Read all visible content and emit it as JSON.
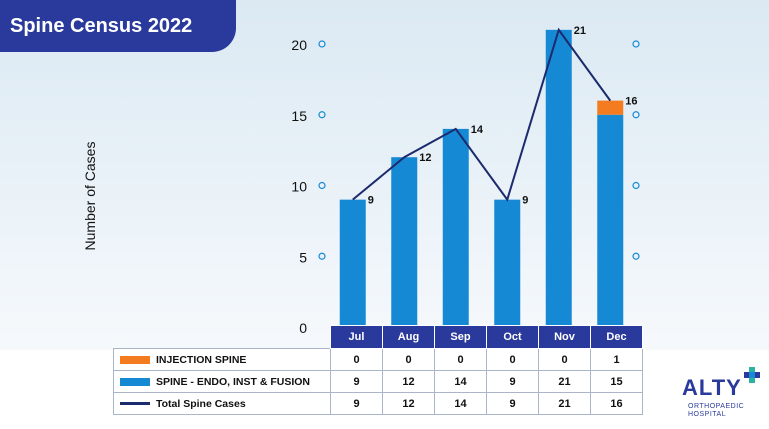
{
  "title": "Spine Census 2022",
  "colors": {
    "injection": "#f47b20",
    "spine": "#1589d4",
    "total": "#1c2a6e",
    "header": "#2a3a9c"
  },
  "chart_data": {
    "type": "bar",
    "stacked": true,
    "categories": [
      "Jul",
      "Aug",
      "Sep",
      "Oct",
      "Nov",
      "Dec"
    ],
    "ylabel": "Number of Cases",
    "ylim": [
      0,
      20
    ],
    "yticks": [
      0,
      5,
      10,
      15,
      20
    ],
    "series": [
      {
        "name": "INJECTION SPINE",
        "type": "bar",
        "values": [
          0,
          0,
          0,
          0,
          0,
          1
        ]
      },
      {
        "name": "SPINE - ENDO, INST & FUSION",
        "type": "bar",
        "values": [
          9,
          12,
          14,
          9,
          21,
          15
        ]
      },
      {
        "name": "Total Spine Cases",
        "type": "line",
        "values": [
          9,
          12,
          14,
          9,
          21,
          16
        ]
      }
    ],
    "data_labels": [
      "9",
      "12",
      "14",
      "9",
      "21",
      "16"
    ],
    "legend": "data table below chart"
  },
  "table": {
    "headers": [
      "Jul",
      "Aug",
      "Sep",
      "Oct",
      "Nov",
      "Dec"
    ],
    "rows": [
      {
        "label": "INJECTION SPINE",
        "values": [
          "0",
          "0",
          "0",
          "0",
          "0",
          "1"
        ]
      },
      {
        "label": "SPINE - ENDO, INST & FUSION",
        "values": [
          "9",
          "12",
          "14",
          "9",
          "21",
          "15"
        ]
      },
      {
        "label": "Total Spine Cases",
        "values": [
          "9",
          "12",
          "14",
          "9",
          "21",
          "16"
        ]
      }
    ]
  },
  "logo": {
    "brand": "ALTY",
    "line1": "ORTHOPAEDIC",
    "line2": "HOSPITAL"
  }
}
